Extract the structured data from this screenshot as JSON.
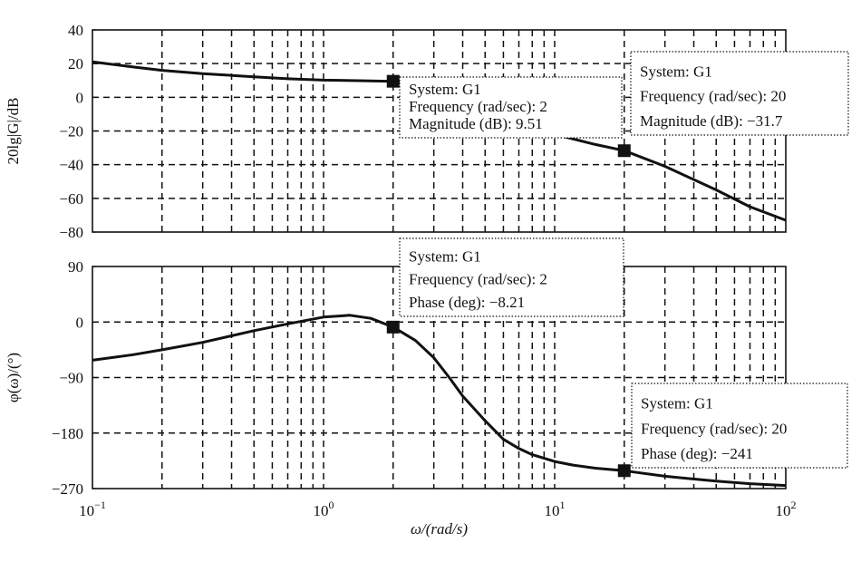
{
  "chart_data": [
    {
      "type": "line",
      "panel": "magnitude",
      "ylabel": "20lg|G|/dB",
      "xscale": "log",
      "xlim": [
        0.1,
        100
      ],
      "ylim": [
        -80,
        40
      ],
      "yticks": [
        40,
        20,
        0,
        -20,
        -40,
        -60,
        -80
      ],
      "ytick_labels": [
        "40",
        "20",
        "0",
        "−20",
        "−40",
        "−60",
        "−80"
      ],
      "grid": true,
      "series": [
        {
          "x": [
            0.1,
            0.15,
            0.2,
            0.3,
            0.5,
            0.7,
            1,
            1.5,
            2,
            2.5,
            3,
            3.5,
            4,
            4.5,
            5,
            5.5,
            6,
            8,
            10,
            15,
            20,
            30,
            50,
            70,
            100
          ],
          "y": [
            21,
            18,
            16,
            14,
            12.2,
            11,
            10.2,
            9.8,
            9.51,
            9.2,
            8.5,
            7.5,
            5.5,
            3,
            0,
            -5,
            -9,
            -17,
            -22,
            -28,
            -31.7,
            -41,
            -55,
            -65,
            -73
          ]
        }
      ],
      "datatips": [
        {
          "system": "System: G1",
          "freq": "Frequency (rad/sec): 2",
          "value": "Magnitude (dB): 9.51",
          "x": 2,
          "y": 9.51
        },
        {
          "system": "System: G1",
          "freq": "Frequency (rad/sec): 20",
          "value": "Magnitude (dB): −31.7",
          "x": 20,
          "y": -31.7
        }
      ]
    },
    {
      "type": "line",
      "panel": "phase",
      "ylabel": "φ(ω)/(°)",
      "xlabel": "ω/(rad/s)",
      "xscale": "log",
      "xlim": [
        0.1,
        100
      ],
      "ylim": [
        -270,
        90
      ],
      "yticks": [
        90,
        0,
        -90,
        -180,
        -270
      ],
      "ytick_labels": [
        "90",
        "0",
        "−90",
        "−180",
        "−270"
      ],
      "xticks": [
        0.1,
        1,
        10,
        100
      ],
      "xtick_labels": [
        {
          "base": "10",
          "exp": "−1"
        },
        {
          "base": "10",
          "exp": "0"
        },
        {
          "base": "10",
          "exp": "1"
        },
        {
          "base": "10",
          "exp": "2"
        }
      ],
      "grid": true,
      "series": [
        {
          "x": [
            0.1,
            0.15,
            0.2,
            0.3,
            0.5,
            0.7,
            1,
            1.3,
            1.6,
            2,
            2.5,
            3,
            3.5,
            4,
            5,
            6,
            7,
            8,
            10,
            12,
            15,
            20,
            30,
            50,
            70,
            100
          ],
          "y": [
            -62,
            -53,
            -45,
            -33,
            -14,
            -3,
            8,
            11,
            6,
            -8.21,
            -30,
            -58,
            -90,
            -120,
            -160,
            -190,
            -205,
            -215,
            -226,
            -232,
            -237,
            -241,
            -250,
            -258,
            -262,
            -265
          ]
        }
      ],
      "datatips": [
        {
          "system": "System: G1",
          "freq": "Frequency (rad/sec): 2",
          "value": "Phase (deg): −8.21",
          "x": 2,
          "y": -8.21
        },
        {
          "system": "System: G1",
          "freq": "Frequency (rad/sec): 20",
          "value": "Phase (deg): −241",
          "x": 20,
          "y": -241
        }
      ]
    }
  ]
}
